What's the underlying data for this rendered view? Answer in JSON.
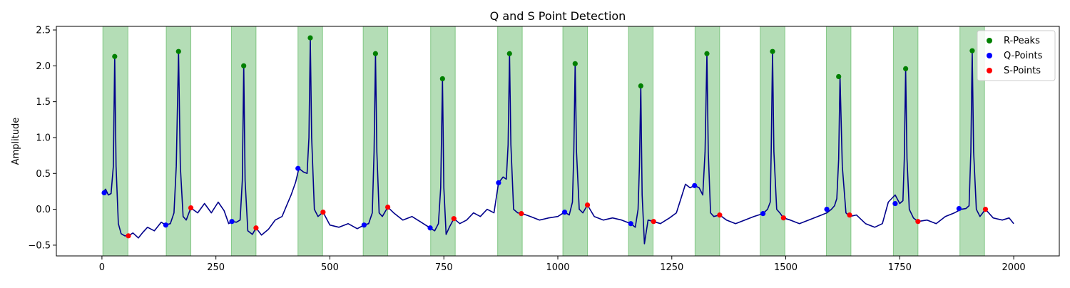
{
  "chart_data": {
    "type": "line",
    "title": "Q and S Point Detection",
    "xlabel": "",
    "ylabel": "Amplitude",
    "xlim": [
      -100,
      2100
    ],
    "ylim": [
      -0.65,
      2.55
    ],
    "x_ticks": [
      0,
      250,
      500,
      750,
      1000,
      1250,
      1500,
      1750,
      2000
    ],
    "y_ticks": [
      -0.5,
      0.0,
      0.5,
      1.0,
      1.5,
      2.0,
      2.5
    ],
    "x_tick_labels": [
      "0",
      "250",
      "500",
      "750",
      "1000",
      "1250",
      "1500",
      "1750",
      "2000"
    ],
    "y_tick_labels": [
      "−0.5",
      "0.0",
      "0.5",
      "1.0",
      "1.5",
      "2.0",
      "2.5"
    ],
    "grid": false,
    "legend_position": "top-right",
    "legend": [
      "R-Peaks",
      "Q-Points",
      "S-Points"
    ],
    "colors": {
      "signal": "#00008b",
      "r_peaks": "#008000",
      "q_points": "#0000ff",
      "s_points": "#ff0000",
      "qrs_span": "#4caf50"
    },
    "qrs_windows": [
      [
        2,
        57
      ],
      [
        141,
        195
      ],
      [
        284,
        338
      ],
      [
        430,
        484
      ],
      [
        573,
        627
      ],
      [
        721,
        775
      ],
      [
        868,
        922
      ],
      [
        1011,
        1065
      ],
      [
        1155,
        1209
      ],
      [
        1301,
        1355
      ],
      [
        1444,
        1498
      ],
      [
        1589,
        1643
      ],
      [
        1736,
        1790
      ],
      [
        1882,
        1936
      ]
    ],
    "series": [
      {
        "name": "R-Peaks",
        "marker": "dot",
        "points": [
          [
            28,
            2.13
          ],
          [
            168,
            2.2
          ],
          [
            311,
            2.0
          ],
          [
            457,
            2.39
          ],
          [
            600,
            2.17
          ],
          [
            747,
            1.82
          ],
          [
            894,
            2.17
          ],
          [
            1038,
            2.03
          ],
          [
            1182,
            1.72
          ],
          [
            1327,
            2.17
          ],
          [
            1471,
            2.2
          ],
          [
            1616,
            1.85
          ],
          [
            1763,
            1.96
          ],
          [
            1909,
            2.21
          ]
        ]
      },
      {
        "name": "Q-Points",
        "marker": "dot",
        "points": [
          [
            5,
            0.23
          ],
          [
            140,
            -0.22
          ],
          [
            285,
            -0.17
          ],
          [
            430,
            0.57
          ],
          [
            575,
            -0.22
          ],
          [
            720,
            -0.26
          ],
          [
            870,
            0.37
          ],
          [
            1015,
            -0.04
          ],
          [
            1160,
            -0.2
          ],
          [
            1300,
            0.33
          ],
          [
            1450,
            -0.06
          ],
          [
            1590,
            0.0
          ],
          [
            1740,
            0.08
          ],
          [
            1880,
            0.01
          ]
        ]
      },
      {
        "name": "S-Points",
        "marker": "dot",
        "points": [
          [
            58,
            -0.37
          ],
          [
            195,
            0.02
          ],
          [
            338,
            -0.26
          ],
          [
            485,
            -0.04
          ],
          [
            627,
            0.03
          ],
          [
            772,
            -0.13
          ],
          [
            920,
            -0.06
          ],
          [
            1065,
            0.06
          ],
          [
            1210,
            -0.17
          ],
          [
            1355,
            -0.08
          ],
          [
            1495,
            -0.12
          ],
          [
            1640,
            -0.08
          ],
          [
            1790,
            -0.17
          ],
          [
            1938,
            0.0
          ]
        ]
      }
    ],
    "signal": {
      "x": [
        0,
        8,
        14,
        20,
        25,
        28,
        31,
        36,
        42,
        50,
        58,
        68,
        80,
        90,
        100,
        115,
        130,
        140,
        150,
        158,
        163,
        168,
        172,
        178,
        185,
        195,
        210,
        225,
        240,
        255,
        268,
        278,
        285,
        295,
        303,
        308,
        311,
        314,
        320,
        330,
        338,
        350,
        365,
        380,
        395,
        405,
        415,
        425,
        432,
        442,
        450,
        454,
        457,
        460,
        466,
        474,
        485,
        500,
        520,
        540,
        560,
        575,
        585,
        593,
        597,
        600,
        603,
        608,
        615,
        627,
        640,
        660,
        680,
        700,
        720,
        730,
        738,
        743,
        747,
        750,
        755,
        762,
        772,
        785,
        800,
        815,
        830,
        845,
        860,
        870,
        880,
        887,
        891,
        894,
        897,
        903,
        912,
        922,
        940,
        960,
        980,
        1000,
        1015,
        1025,
        1032,
        1035,
        1038,
        1041,
        1047,
        1055,
        1065,
        1080,
        1100,
        1120,
        1140,
        1160,
        1170,
        1176,
        1179,
        1182,
        1185,
        1190,
        1198,
        1210,
        1225,
        1245,
        1260,
        1270,
        1280,
        1290,
        1300,
        1310,
        1318,
        1323,
        1327,
        1330,
        1335,
        1342,
        1355,
        1370,
        1390,
        1410,
        1430,
        1450,
        1460,
        1466,
        1468,
        1471,
        1474,
        1480,
        1487,
        1495,
        1510,
        1530,
        1550,
        1570,
        1590,
        1600,
        1607,
        1612,
        1616,
        1619,
        1624,
        1632,
        1640,
        1655,
        1675,
        1695,
        1712,
        1725,
        1740,
        1750,
        1757,
        1760,
        1763,
        1766,
        1771,
        1780,
        1790,
        1810,
        1830,
        1850,
        1870,
        1885,
        1895,
        1902,
        1906,
        1909,
        1912,
        1918,
        1926,
        1938,
        1955,
        1975,
        1990,
        2000
      ],
      "y": [
        0.22,
        0.28,
        0.2,
        0.22,
        0.6,
        2.13,
        0.6,
        -0.2,
        -0.34,
        -0.37,
        -0.37,
        -0.33,
        -0.4,
        -0.32,
        -0.25,
        -0.3,
        -0.18,
        -0.22,
        -0.2,
        -0.05,
        0.6,
        2.2,
        0.6,
        -0.1,
        -0.15,
        0.02,
        -0.05,
        0.08,
        -0.05,
        0.1,
        -0.02,
        -0.2,
        -0.17,
        -0.18,
        -0.15,
        0.4,
        2.0,
        0.4,
        -0.3,
        -0.35,
        -0.26,
        -0.36,
        -0.28,
        -0.15,
        -0.1,
        0.05,
        0.2,
        0.38,
        0.57,
        0.52,
        0.5,
        1.0,
        2.39,
        1.0,
        0.0,
        -0.1,
        -0.04,
        -0.22,
        -0.25,
        -0.2,
        -0.27,
        -0.22,
        -0.2,
        -0.05,
        0.8,
        2.17,
        0.8,
        -0.05,
        -0.1,
        0.03,
        -0.05,
        -0.15,
        -0.1,
        -0.18,
        -0.26,
        -0.3,
        -0.2,
        0.3,
        1.82,
        0.3,
        -0.35,
        -0.25,
        -0.13,
        -0.2,
        -0.15,
        -0.05,
        -0.1,
        0.0,
        -0.05,
        0.37,
        0.45,
        0.42,
        0.9,
        2.17,
        0.9,
        0.0,
        -0.05,
        -0.06,
        -0.1,
        -0.15,
        -0.12,
        -0.1,
        -0.04,
        -0.08,
        0.1,
        0.8,
        2.03,
        0.8,
        0.0,
        -0.05,
        0.06,
        -0.1,
        -0.15,
        -0.12,
        -0.15,
        -0.2,
        -0.25,
        0.0,
        0.6,
        1.72,
        0.2,
        -0.48,
        -0.15,
        -0.17,
        -0.2,
        -0.12,
        -0.05,
        0.15,
        0.35,
        0.3,
        0.33,
        0.3,
        0.2,
        0.8,
        2.17,
        0.8,
        -0.05,
        -0.1,
        -0.08,
        -0.15,
        -0.2,
        -0.15,
        -0.1,
        -0.06,
        0.0,
        0.1,
        0.8,
        2.2,
        0.8,
        0.0,
        -0.05,
        -0.12,
        -0.15,
        -0.2,
        -0.15,
        -0.1,
        -0.05,
        0.0,
        0.05,
        0.15,
        0.7,
        1.85,
        0.6,
        -0.05,
        -0.1,
        -0.08,
        -0.2,
        -0.25,
        -0.2,
        0.1,
        0.2,
        0.08,
        0.12,
        0.7,
        1.96,
        0.7,
        0.0,
        -0.12,
        -0.17,
        -0.15,
        -0.2,
        -0.1,
        -0.05,
        0.0,
        0.01,
        0.05,
        0.8,
        2.21,
        0.8,
        0.0,
        -0.1,
        0.0,
        -0.12,
        -0.15,
        -0.12,
        -0.2
      ]
    }
  }
}
